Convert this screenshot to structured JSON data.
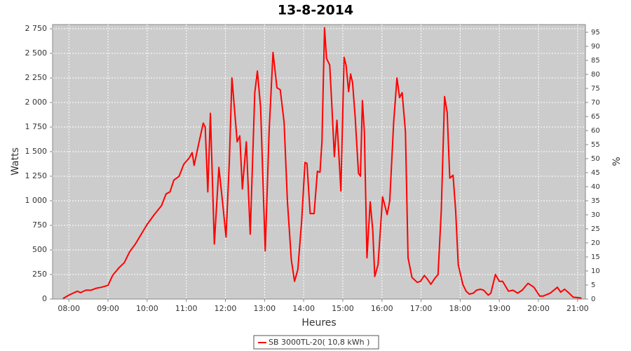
{
  "chart_data": {
    "type": "line",
    "title": "13-8-2014",
    "xlabel": "Heures",
    "ylabel": "Watts",
    "y2label": "%",
    "x": [
      "07:51",
      "08:00",
      "08:13",
      "08:18",
      "08:26",
      "08:34",
      "08:42",
      "08:50",
      "09:00",
      "09:07",
      "09:17",
      "09:25",
      "09:33",
      "09:42",
      "09:50",
      "10:00",
      "10:11",
      "10:22",
      "10:29",
      "10:35",
      "10:41",
      "10:49",
      "10:56",
      "11:05",
      "11:09",
      "11:12",
      "11:19",
      "11:26",
      "11:29",
      "11:33",
      "11:37",
      "11:43",
      "11:50",
      "11:56",
      "12:01",
      "12:06",
      "12:10",
      "12:18",
      "12:22",
      "12:26",
      "12:32",
      "12:38",
      "12:45",
      "12:49",
      "12:54",
      "13:01",
      "13:07",
      "13:13",
      "13:19",
      "13:24",
      "13:30",
      "13:35",
      "13:41",
      "13:46",
      "13:51",
      "13:57",
      "14:02",
      "14:05",
      "14:10",
      "14:16",
      "14:21",
      "14:25",
      "14:28",
      "14:32",
      "14:35",
      "14:40",
      "14:43",
      "14:47",
      "14:51",
      "14:57",
      "15:02",
      "15:05",
      "15:09",
      "15:12",
      "15:15",
      "15:19",
      "15:24",
      "15:27",
      "15:30",
      "15:33",
      "15:37",
      "15:42",
      "15:46",
      "15:49",
      "15:54",
      "16:01",
      "16:08",
      "16:12",
      "16:18",
      "16:23",
      "16:27",
      "16:31",
      "16:36",
      "16:40",
      "16:46",
      "16:54",
      "16:59",
      "17:05",
      "17:10",
      "17:15",
      "17:21",
      "17:26",
      "17:31",
      "17:36",
      "17:40",
      "17:44",
      "17:49",
      "17:53",
      "17:57",
      "18:04",
      "18:09",
      "18:14",
      "18:20",
      "18:25",
      "18:31",
      "18:36",
      "18:43",
      "18:47",
      "18:54",
      "19:00",
      "19:05",
      "19:14",
      "19:21",
      "19:28",
      "19:35",
      "19:44",
      "19:53",
      "20:02",
      "20:07",
      "20:18",
      "20:29",
      "20:34",
      "20:40",
      "20:47",
      "20:53",
      "21:06"
    ],
    "series": [
      {
        "name": "SB 3000TL-20( 10,8 kWh )",
        "color": "#ff0000",
        "values": [
          5,
          40,
          80,
          65,
          90,
          90,
          110,
          120,
          140,
          240,
          320,
          370,
          480,
          560,
          650,
          760,
          860,
          950,
          1070,
          1090,
          1210,
          1250,
          1370,
          1440,
          1490,
          1360,
          1580,
          1790,
          1750,
          1090,
          1890,
          560,
          1340,
          960,
          630,
          1400,
          2250,
          1600,
          1660,
          1120,
          1600,
          660,
          2100,
          2320,
          1950,
          490,
          1700,
          2510,
          2150,
          2130,
          1800,
          1000,
          400,
          180,
          300,
          800,
          1390,
          1380,
          870,
          870,
          1300,
          1290,
          1600,
          2760,
          2450,
          2380,
          2000,
          1450,
          1820,
          1100,
          2460,
          2380,
          2110,
          2290,
          2200,
          1850,
          1280,
          1250,
          2020,
          1700,
          420,
          990,
          700,
          230,
          350,
          1040,
          860,
          1000,
          1800,
          2250,
          2050,
          2100,
          1700,
          420,
          220,
          170,
          180,
          240,
          200,
          150,
          210,
          250,
          900,
          2060,
          1900,
          1230,
          1260,
          900,
          350,
          150,
          80,
          50,
          60,
          90,
          100,
          90,
          40,
          60,
          250,
          180,
          180,
          80,
          90,
          60,
          90,
          160,
          120,
          30,
          30,
          60,
          120,
          70,
          100,
          60,
          20,
          10
        ]
      }
    ],
    "xlim": [
      "07:35",
      "21:12"
    ],
    "xticks": [
      "08:00",
      "09:00",
      "10:00",
      "11:00",
      "12:00",
      "13:00",
      "14:00",
      "15:00",
      "16:00",
      "17:00",
      "18:00",
      "19:00",
      "20:00",
      "21:00"
    ],
    "ylim": [
      0,
      2793
    ],
    "yticks": [
      0,
      250,
      500,
      750,
      {
        "value": 1000,
        "label": "1 000"
      },
      {
        "value": 1250,
        "label": "1 250"
      },
      {
        "value": 1500,
        "label": "1 500"
      },
      {
        "value": 1750,
        "label": "1 750"
      },
      {
        "value": 2000,
        "label": "2 000"
      },
      {
        "value": 2250,
        "label": "2 250"
      },
      {
        "value": 2500,
        "label": "2 500"
      },
      {
        "value": 2750,
        "label": "2 750"
      }
    ],
    "y2lim": [
      0,
      97.75
    ],
    "y2ticks": [
      0,
      5,
      10,
      15,
      20,
      25,
      30,
      35,
      40,
      45,
      50,
      55,
      60,
      65,
      70,
      75,
      80,
      85,
      90,
      95
    ],
    "grid": true,
    "legend": "bottom"
  }
}
